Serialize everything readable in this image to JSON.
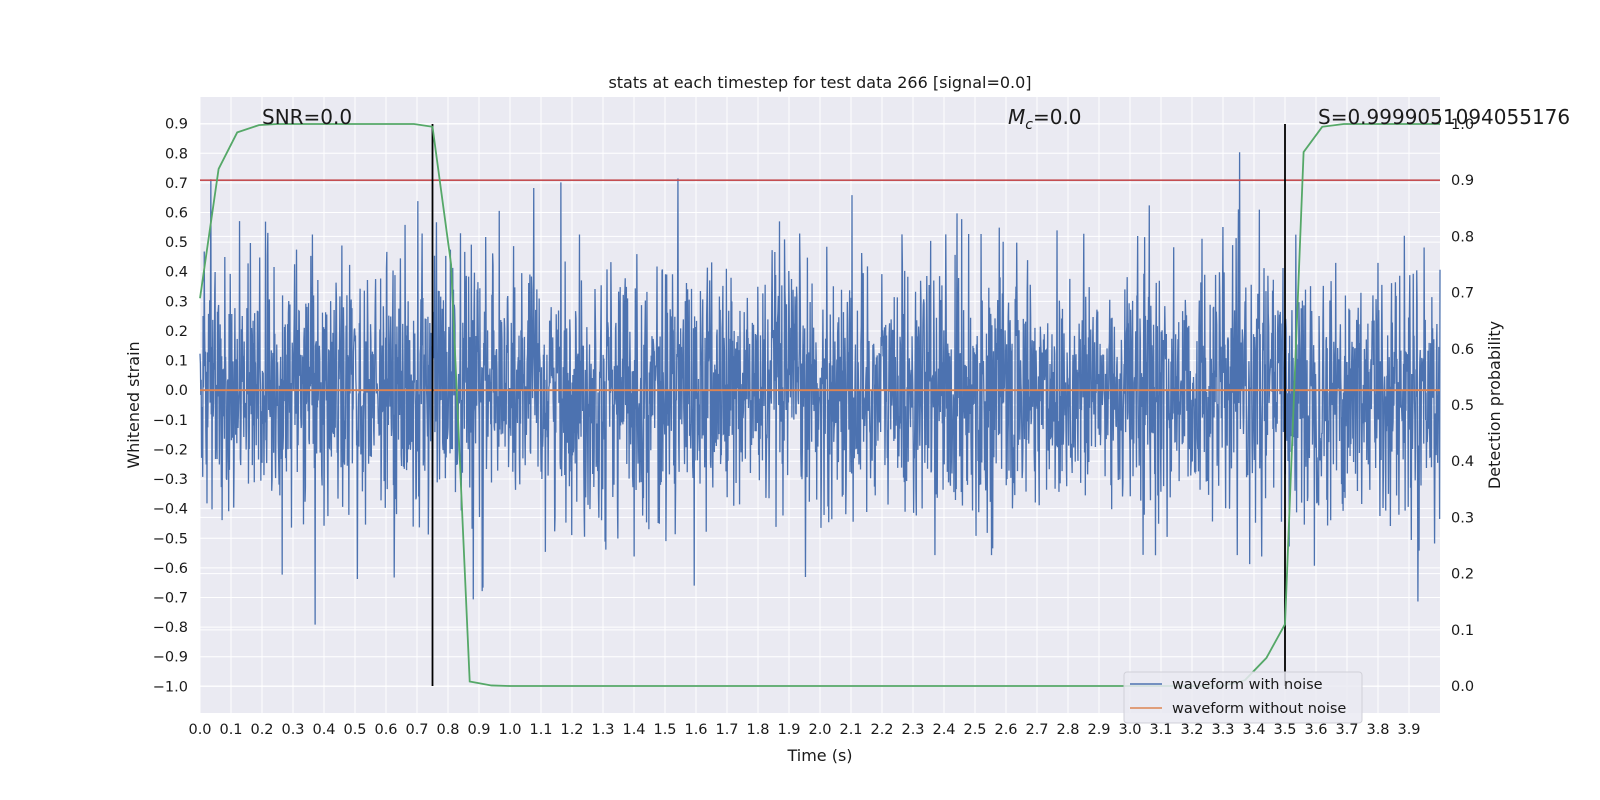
{
  "chart_data": {
    "type": "line",
    "title": "stats at each timestep for test data 266 [signal=0.0]",
    "xlabel": "Time (s)",
    "ylabel": "Whitened strain",
    "y2label": "Detection probability",
    "xlim": [
      0.0,
      4.0
    ],
    "ylim": [
      -1.09,
      0.99
    ],
    "y2lim": [
      -0.048,
      1.048
    ],
    "x_ticks": [
      "0.0",
      "0.1",
      "0.2",
      "0.3",
      "0.4",
      "0.5",
      "0.6",
      "0.7",
      "0.8",
      "0.9",
      "1.0",
      "1.1",
      "1.2",
      "1.3",
      "1.4",
      "1.5",
      "1.6",
      "1.7",
      "1.8",
      "1.9",
      "2.0",
      "2.1",
      "2.2",
      "2.3",
      "2.4",
      "2.5",
      "2.6",
      "2.7",
      "2.8",
      "2.9",
      "3.0",
      "3.1",
      "3.2",
      "3.3",
      "3.4",
      "3.5",
      "3.6",
      "3.7",
      "3.8",
      "3.9"
    ],
    "y_ticks": [
      "0.9",
      "0.8",
      "0.7",
      "0.6",
      "0.5",
      "0.4",
      "0.3",
      "0.2",
      "0.1",
      "0.0",
      "−0.1",
      "−0.2",
      "−0.3",
      "−0.4",
      "−0.5",
      "−0.6",
      "−0.7",
      "−0.8",
      "−0.9",
      "−1.0"
    ],
    "y2_ticks": [
      "1.0",
      "0.9",
      "0.8",
      "0.7",
      "0.6",
      "0.5",
      "0.4",
      "0.3",
      "0.2",
      "0.1",
      "0.0"
    ],
    "grid": true,
    "legend": "bottom-right",
    "series": [
      {
        "name": "waveform with noise",
        "color": "#4c72b0",
        "axis": "left",
        "noise_std": 0.21,
        "x_range": [
          0.0,
          4.0
        ]
      },
      {
        "name": "waveform without noise",
        "color": "#dd8452",
        "axis": "left",
        "x": [
          0.0,
          4.0
        ],
        "y": [
          0.0,
          0.0
        ]
      },
      {
        "color": "#55a868",
        "axis": "right",
        "x": [
          0.0,
          0.06,
          0.12,
          0.19,
          0.25,
          0.31,
          0.37,
          0.44,
          0.5,
          0.56,
          0.62,
          0.69,
          0.75,
          0.81,
          0.87,
          0.94,
          1.0,
          1.5,
          2.0,
          2.5,
          3.0,
          3.3,
          3.37,
          3.44,
          3.5,
          3.56,
          3.62,
          3.69,
          3.75,
          3.81,
          3.87,
          3.94,
          4.0
        ],
        "y": [
          0.69,
          0.92,
          0.985,
          0.998,
          1.0,
          1.0,
          1.0,
          1.0,
          1.0,
          1.0,
          1.0,
          1.0,
          0.995,
          0.75,
          0.008,
          0.001,
          0.0,
          0.0,
          0.0,
          0.0,
          0.0,
          0.0,
          0.01,
          0.05,
          0.11,
          0.95,
          0.995,
          1.0,
          1.0,
          1.0,
          1.0,
          1.0,
          1.0
        ]
      }
    ],
    "threshold": {
      "value": 0.9,
      "axis": "right",
      "color": "#c44e52"
    },
    "vertical_lines": [
      0.75,
      3.5
    ],
    "annotations": {
      "snr": "SNR=0.0",
      "mc_symbol": "M",
      "mc_sub": "c",
      "mc_value": "=0.0",
      "s": "S=0.9999051094055176"
    }
  }
}
